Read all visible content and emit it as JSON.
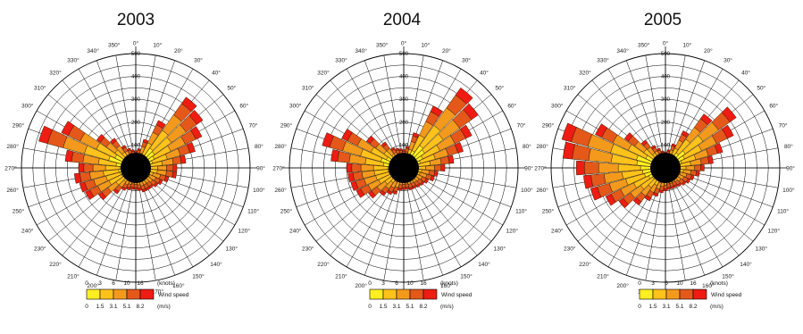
{
  "chart_data": [
    {
      "type": "wind-rose",
      "title": "2003",
      "radial_labels": [
        "100",
        "200",
        "300",
        "400",
        "500"
      ],
      "rlim": [
        0,
        500
      ],
      "directions": [
        "0°",
        "10°",
        "20°",
        "30°",
        "40°",
        "50°",
        "60°",
        "70°",
        "80°",
        "90°",
        "100°",
        "110°",
        "120°",
        "130°",
        "140°",
        "150°",
        "160°",
        "170°",
        "180°",
        "190°",
        "200°",
        "210°",
        "220°",
        "230°",
        "240°",
        "250°",
        "260°",
        "270°",
        "280°",
        "290°",
        "300°",
        "310°",
        "320°",
        "330°",
        "340°",
        "350°"
      ],
      "total_counts": [
        75,
        85,
        130,
        230,
        380,
        360,
        320,
        270,
        220,
        180,
        180,
        150,
        130,
        120,
        110,
        110,
        110,
        100,
        95,
        95,
        100,
        110,
        140,
        200,
        245,
        255,
        270,
        250,
        310,
        440,
        360,
        210,
        160,
        110,
        90,
        80
      ],
      "speed_classes_knots": [
        "0",
        "3",
        "6",
        "10",
        "16"
      ],
      "speed_classes_ms": [
        "0",
        "1.5",
        "3.1",
        "5.1",
        "8.2"
      ],
      "speed_class_colors": [
        "#ffee22",
        "#ffc21a",
        "#f39a1c",
        "#e4581a",
        "#ee1c12"
      ],
      "knots_unit": "(knots)",
      "ms_unit": "(m/s)",
      "legend_title": "Wind speed"
    },
    {
      "type": "wind-rose",
      "title": "2004",
      "radial_labels": [
        "100",
        "200",
        "300",
        "400",
        "500"
      ],
      "rlim": [
        0,
        500
      ],
      "directions": [
        "0°",
        "10°",
        "20°",
        "30°",
        "40°",
        "50°",
        "60°",
        "70°",
        "80°",
        "90°",
        "100°",
        "110°",
        "120°",
        "130°",
        "140°",
        "150°",
        "160°",
        "170°",
        "180°",
        "190°",
        "200°",
        "210°",
        "220°",
        "230°",
        "240°",
        "250°",
        "260°",
        "270°",
        "280°",
        "290°",
        "300°",
        "310°",
        "320°",
        "330°",
        "340°",
        "350°"
      ],
      "total_counts": [
        80,
        95,
        160,
        300,
        430,
        400,
        330,
        270,
        220,
        180,
        150,
        140,
        120,
        110,
        105,
        100,
        100,
        95,
        95,
        100,
        120,
        130,
        150,
        190,
        230,
        240,
        245,
        250,
        320,
        370,
        300,
        200,
        140,
        100,
        90,
        85
      ],
      "speed_classes_knots": [
        "0",
        "3",
        "6",
        "10",
        "16"
      ],
      "speed_classes_ms": [
        "0",
        "1.5",
        "3.1",
        "5.1",
        "8.2"
      ],
      "speed_class_colors": [
        "#ffee22",
        "#ffc21a",
        "#f39a1c",
        "#e4581a",
        "#ee1c12"
      ],
      "knots_unit": "(knots)",
      "ms_unit": "(m/s)",
      "legend_title": "Wind speed"
    },
    {
      "type": "wind-rose",
      "title": "2005",
      "radial_labels": [
        "100",
        "200",
        "300",
        "400",
        "500"
      ],
      "rlim": [
        0,
        500
      ],
      "directions": [
        "0°",
        "10°",
        "20°",
        "30°",
        "40°",
        "50°",
        "60°",
        "70°",
        "80°",
        "90°",
        "100°",
        "110°",
        "120°",
        "130°",
        "140°",
        "150°",
        "160°",
        "170°",
        "180°",
        "190°",
        "200°",
        "210°",
        "220°",
        "230°",
        "240°",
        "250°",
        "260°",
        "270°",
        "280°",
        "290°",
        "300°",
        "310°",
        "320°",
        "330°",
        "340°",
        "350°"
      ],
      "total_counts": [
        70,
        80,
        110,
        180,
        290,
        380,
        330,
        260,
        210,
        170,
        150,
        130,
        120,
        110,
        100,
        95,
        95,
        95,
        100,
        110,
        130,
        160,
        200,
        250,
        290,
        340,
        360,
        390,
        450,
        470,
        340,
        220,
        150,
        110,
        90,
        75
      ],
      "speed_classes_knots": [
        "0",
        "3",
        "6",
        "10",
        "16"
      ],
      "speed_classes_ms": [
        "0",
        "1.5",
        "3.1",
        "5.1",
        "8.2"
      ],
      "speed_class_colors": [
        "#ffee22",
        "#ffc21a",
        "#f39a1c",
        "#e4581a",
        "#ee1c12"
      ],
      "knots_unit": "(knots)",
      "ms_unit": "(m/s)",
      "legend_title": "Wind speed"
    }
  ]
}
